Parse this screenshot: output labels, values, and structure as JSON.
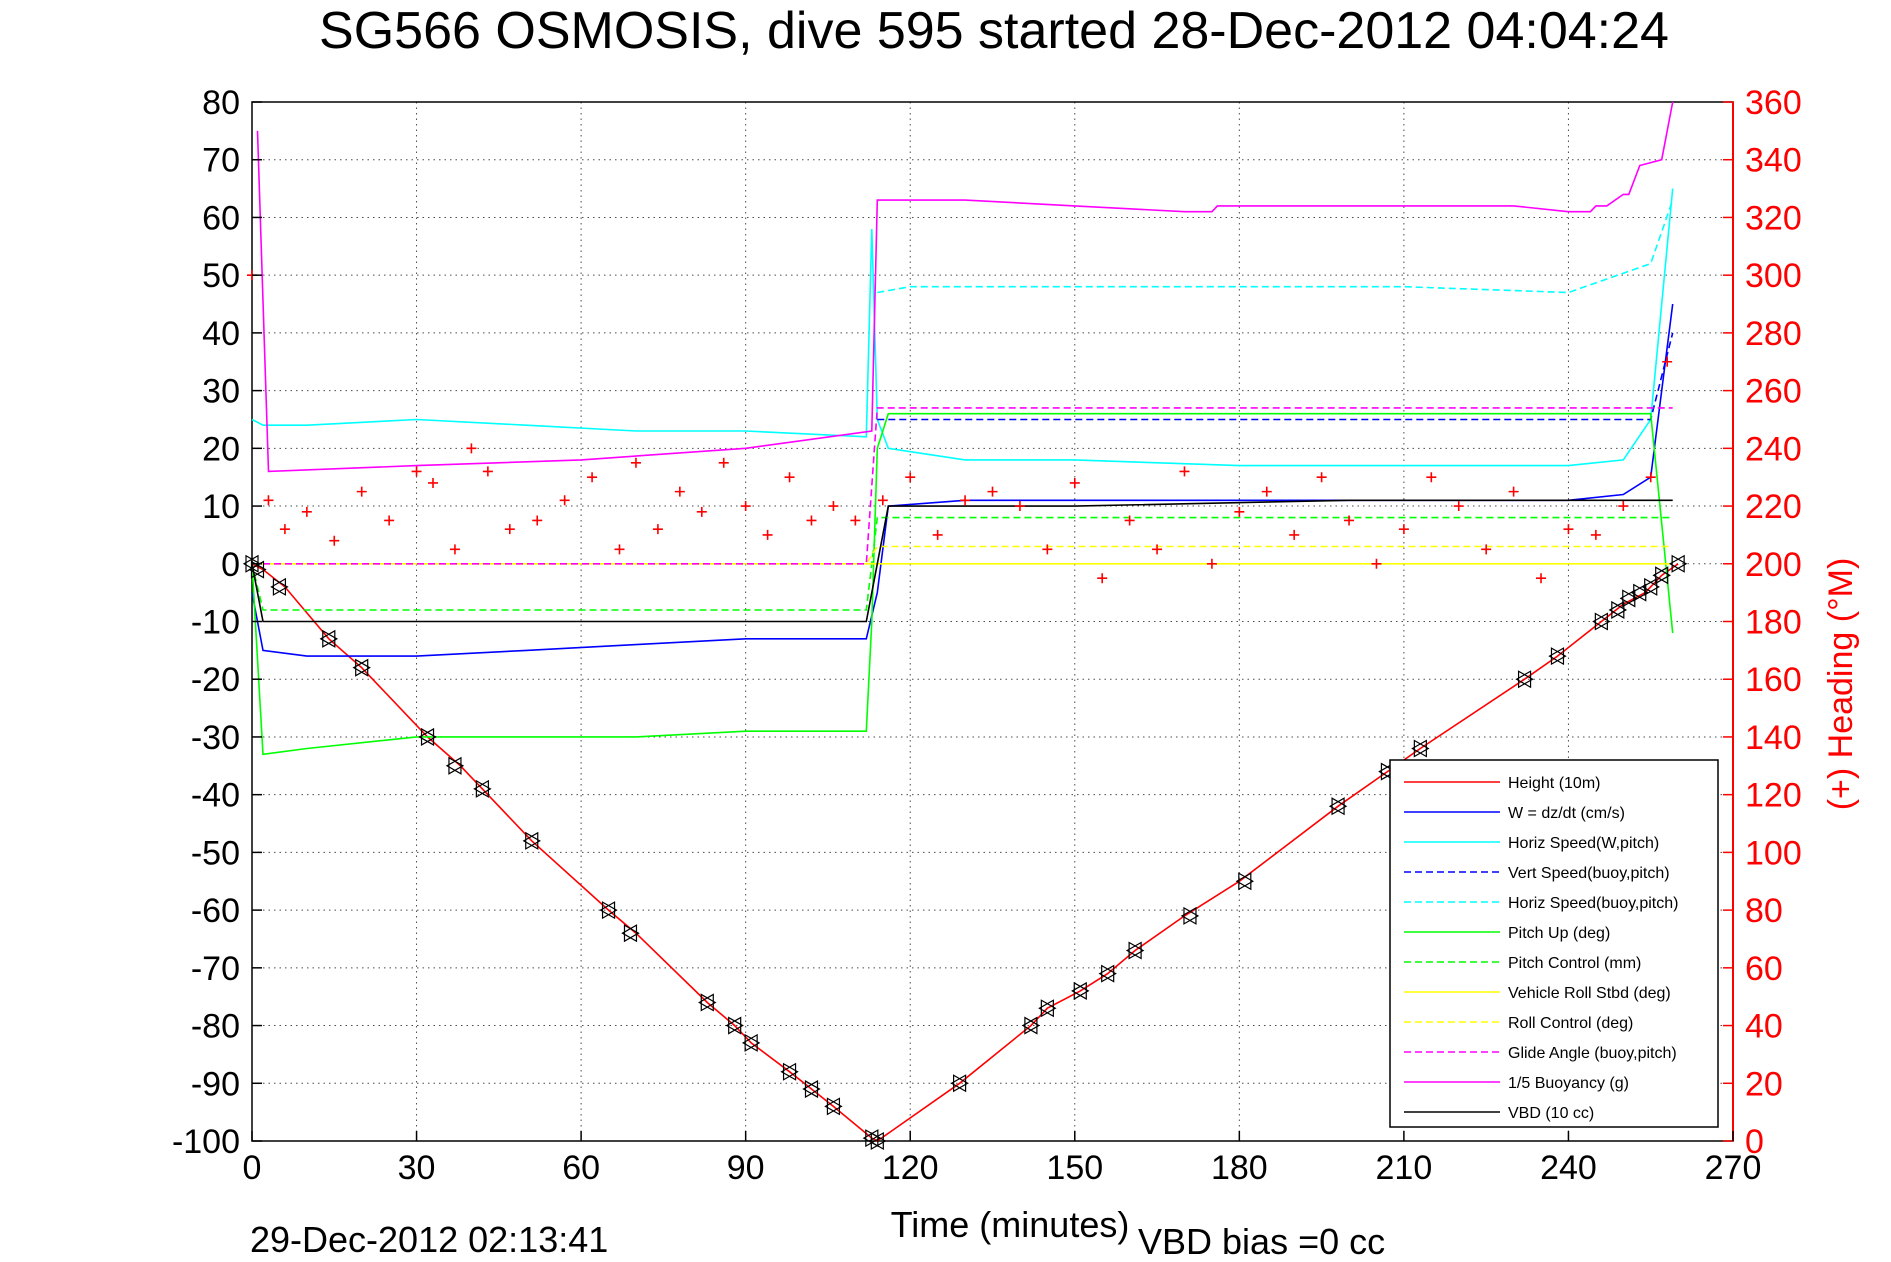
{
  "chart_data": {
    "type": "line",
    "title": "SG566 OSMOSIS, dive 595 started 28-Dec-2012 04:04:24",
    "xlabel": "Time (minutes)",
    "ylabel_left": "",
    "ylabel_right": "(+) Heading (°M)",
    "footer_left": "29-Dec-2012 02:13:41",
    "footer_right": "VBD bias =0 cc",
    "xlim": [
      0,
      270
    ],
    "ylim_left": [
      -100,
      80
    ],
    "ylim_right": [
      0,
      360
    ],
    "xticks": [
      "0",
      "30",
      "60",
      "90",
      "120",
      "150",
      "180",
      "210",
      "240",
      "270"
    ],
    "yticks_left": [
      "80",
      "70",
      "60",
      "50",
      "40",
      "30",
      "20",
      "10",
      "0",
      "-10",
      "-20",
      "-30",
      "-40",
      "-50",
      "-60",
      "-70",
      "-80",
      "-90",
      "-100"
    ],
    "yticks_right": [
      "360",
      "340",
      "320",
      "300",
      "280",
      "260",
      "240",
      "220",
      "200",
      "180",
      "160",
      "140",
      "120",
      "100",
      "80",
      "60",
      "40",
      "20",
      "0"
    ],
    "grid": true,
    "legend_position": "bottom-right",
    "colors": {
      "red": "#ff0000",
      "blue": "#0000ff",
      "cyan": "#00ffff",
      "green": "#00ff00",
      "yellow": "#ffff00",
      "magenta": "#ff00ff",
      "black": "#000000"
    },
    "series": [
      {
        "name": "Height (10m)",
        "color": "#ff0000",
        "style": "solid",
        "x": [
          0,
          2,
          6,
          14,
          20,
          32,
          38,
          42,
          51,
          65,
          70,
          83,
          88,
          91,
          98,
          102,
          106,
          113,
          114,
          129,
          142,
          145,
          151,
          156,
          161,
          170,
          180,
          198,
          207,
          213,
          232,
          238,
          246,
          250,
          254,
          257,
          260
        ],
        "y": [
          0,
          -1,
          -4,
          -13,
          -18,
          -30,
          -35,
          -39,
          -48,
          -60,
          -64,
          -76,
          -80,
          -83,
          -88,
          -91,
          -94,
          -99.5,
          -100,
          -90,
          -80,
          -77,
          -74,
          -71,
          -67,
          -61,
          -55,
          -42,
          -36,
          -32,
          -20,
          -16,
          -10,
          -7,
          -5,
          -2,
          0
        ]
      },
      {
        "name": "W = dz/dt (cm/s)",
        "color": "#0000ff",
        "style": "solid",
        "x": [
          0,
          2,
          10,
          30,
          50,
          70,
          90,
          112,
          114,
          116,
          130,
          150,
          180,
          210,
          240,
          250,
          255,
          259
        ],
        "y": [
          -5,
          -15,
          -16,
          -16,
          -15,
          -14,
          -13,
          -13,
          -5,
          10,
          11,
          11,
          11,
          11,
          11,
          12,
          15,
          45
        ]
      },
      {
        "name": "Horiz Speed(W,pitch)",
        "color": "#00ffff",
        "style": "solid",
        "x": [
          0,
          2,
          10,
          30,
          50,
          70,
          90,
          112,
          113,
          114,
          116,
          130,
          150,
          180,
          210,
          240,
          250,
          255,
          259
        ],
        "y": [
          25,
          24,
          24,
          25,
          24,
          23,
          23,
          22,
          58,
          25,
          20,
          18,
          18,
          17,
          17,
          17,
          18,
          25,
          65
        ]
      },
      {
        "name": "Vert Speed(buoy,pitch)",
        "color": "#0000ff",
        "style": "dashed",
        "x": [
          114,
          120,
          150,
          180,
          210,
          240,
          255,
          259
        ],
        "y": [
          25,
          25,
          25,
          25,
          25,
          25,
          25,
          40
        ]
      },
      {
        "name": "Horiz Speed(buoy,pitch)",
        "color": "#00ffff",
        "style": "dashed",
        "x": [
          114,
          120,
          150,
          180,
          210,
          240,
          255,
          259
        ],
        "y": [
          47,
          48,
          48,
          48,
          48,
          47,
          52,
          63
        ]
      },
      {
        "name": "Pitch Up (deg)",
        "color": "#00ff00",
        "style": "solid",
        "x": [
          0,
          2,
          10,
          30,
          50,
          70,
          90,
          112,
          113,
          114,
          116,
          130,
          150,
          180,
          210,
          240,
          255,
          259
        ],
        "y": [
          0,
          -33,
          -32,
          -30,
          -30,
          -30,
          -29,
          -29,
          -10,
          20,
          26,
          26,
          26,
          26,
          26,
          26,
          26,
          -12
        ]
      },
      {
        "name": "Pitch Control (mm)",
        "color": "#00ff00",
        "style": "dashed",
        "x": [
          0,
          2,
          112,
          114,
          259
        ],
        "y": [
          0,
          -8,
          -8,
          8,
          8
        ]
      },
      {
        "name": "Vehicle Roll Stbd (deg)",
        "color": "#ffff00",
        "style": "solid",
        "x": [
          0,
          10,
          30,
          50,
          70,
          90,
          112,
          114,
          130,
          150,
          180,
          210,
          240,
          255,
          259
        ],
        "y": [
          0,
          0,
          0,
          0,
          0,
          0,
          0,
          0,
          0,
          0,
          0,
          0,
          0,
          0,
          0
        ]
      },
      {
        "name": "Roll Control (deg)",
        "color": "#ffff00",
        "style": "dashed",
        "x": [
          0,
          112,
          114,
          259
        ],
        "y": [
          0,
          0,
          3,
          3
        ]
      },
      {
        "name": "Glide Angle (buoy,pitch)",
        "color": "#ff00ff",
        "style": "dashed",
        "x": [
          0,
          2,
          112,
          114,
          259
        ],
        "y": [
          0,
          0,
          0,
          27,
          27
        ]
      },
      {
        "name": "1/5 Buoyancy (g)",
        "color": "#ff00ff",
        "style": "solid",
        "x": [
          1,
          3,
          30,
          60,
          90,
          113,
          114,
          130,
          150,
          170,
          175,
          176,
          200,
          230,
          240,
          244,
          245,
          247,
          250,
          251,
          253,
          257,
          258,
          259
        ],
        "y": [
          75,
          16,
          17,
          18,
          20,
          23,
          63,
          63,
          62,
          61,
          61,
          62,
          62,
          62,
          61,
          61,
          62,
          62,
          64,
          64,
          69,
          70,
          75,
          80
        ]
      },
      {
        "name": "VBD (10 cc)",
        "color": "#000000",
        "style": "solid",
        "x": [
          0,
          2,
          112,
          114,
          116,
          150,
          200,
          245,
          259
        ],
        "y": [
          0,
          -10,
          -10,
          0,
          10,
          10,
          11,
          11,
          11
        ]
      },
      {
        "name": "(+) Heading (°M)",
        "color": "#ff0000",
        "style": "marker",
        "axis": "right",
        "x": [
          0,
          3,
          6,
          10,
          15,
          20,
          25,
          30,
          33,
          37,
          40,
          43,
          47,
          52,
          57,
          62,
          67,
          70,
          74,
          78,
          82,
          86,
          90,
          94,
          98,
          102,
          106,
          110,
          115,
          120,
          125,
          130,
          135,
          140,
          145,
          150,
          155,
          160,
          165,
          170,
          175,
          180,
          185,
          190,
          195,
          200,
          205,
          210,
          215,
          220,
          225,
          230,
          235,
          240,
          245,
          250,
          255,
          258
        ],
        "y": [
          300,
          222,
          212,
          218,
          208,
          225,
          215,
          232,
          228,
          205,
          240,
          232,
          212,
          215,
          222,
          230,
          205,
          235,
          212,
          225,
          218,
          235,
          220,
          210,
          230,
          215,
          220,
          215,
          222,
          230,
          210,
          222,
          225,
          220,
          205,
          228,
          195,
          215,
          205,
          232,
          200,
          218,
          225,
          210,
          230,
          215,
          200,
          212,
          230,
          220,
          205,
          225,
          195,
          212,
          210,
          220,
          230,
          270
        ]
      }
    ],
    "markers": {
      "name": "depth markers",
      "x": [
        0,
        1,
        5,
        14,
        20,
        32,
        37,
        42,
        51,
        65,
        69,
        83,
        88,
        91,
        98,
        102,
        106,
        113,
        114,
        129,
        142,
        145,
        151,
        156,
        161,
        171,
        181,
        198,
        207,
        213,
        232,
        238,
        246,
        249,
        251,
        253,
        255,
        257,
        260
      ],
      "y": [
        0,
        -1,
        -4,
        -13,
        -18,
        -30,
        -35,
        -39,
        -48,
        -60,
        -64,
        -76,
        -80,
        -83,
        -88,
        -91,
        -94,
        -99.5,
        -100,
        -90,
        -80,
        -77,
        -74,
        -71,
        -67,
        -61,
        -55,
        -42,
        -36,
        -32,
        -20,
        -16,
        -10,
        -8,
        -6,
        -5,
        -4,
        -2,
        0
      ]
    }
  }
}
